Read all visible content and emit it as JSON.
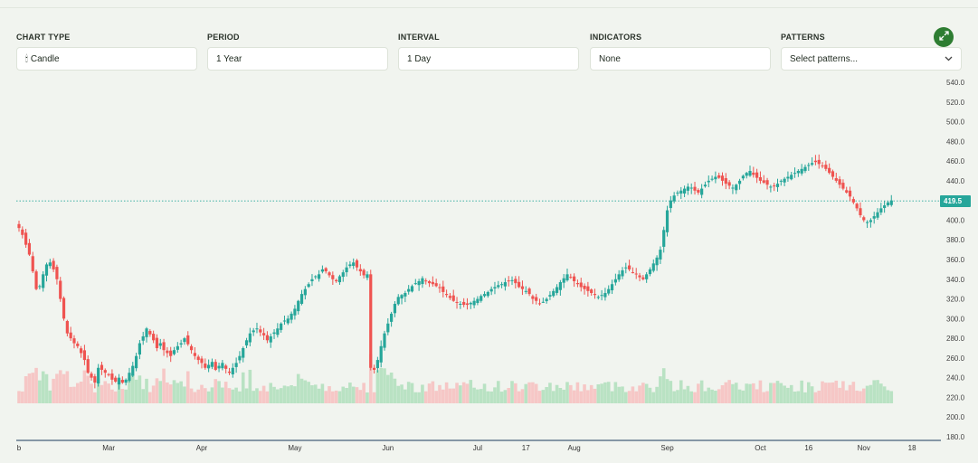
{
  "controls": {
    "chart_type": {
      "label": "CHART TYPE",
      "value": "Candle",
      "icon": "candlestick-icon"
    },
    "period": {
      "label": "PERIOD",
      "value": "1 Year"
    },
    "interval": {
      "label": "INTERVAL",
      "value": "1 Day"
    },
    "indicators": {
      "label": "INDICATORS",
      "value": "None"
    },
    "patterns": {
      "label": "PATTERNS",
      "placeholder": "Select patterns...",
      "icon": "chevron-down-icon"
    }
  },
  "expand_icon": "expand-icon",
  "colors": {
    "up": "#26a69a",
    "down": "#ef5350",
    "up_vol": "#b9e2c3",
    "down_vol": "#f6c7c6",
    "accent": "#2e7d32"
  },
  "chart_data": {
    "type": "candlestick",
    "y_axis": {
      "ticks": [
        540,
        520,
        500,
        480,
        460,
        440,
        420,
        400,
        380,
        360,
        340,
        320,
        300,
        280,
        260,
        240,
        220,
        200,
        180
      ],
      "tick_labels": [
        "540.0",
        "520.0",
        "500.0",
        "480.0",
        "460.0",
        "440.0",
        "420.0",
        "400.0",
        "380.0",
        "360.0",
        "340.0",
        "320.0",
        "300.0",
        "280.0",
        "260.0",
        "240.0",
        "220.0",
        "200.0",
        "180.0"
      ],
      "ylim": [
        180,
        540
      ]
    },
    "x_axis": {
      "labels": [
        {
          "text": "b",
          "day": 0
        },
        {
          "text": "Mar",
          "day": 26
        },
        {
          "text": "Apr",
          "day": 53
        },
        {
          "text": "May",
          "day": 80
        },
        {
          "text": "Jun",
          "day": 107
        },
        {
          "text": "Jul",
          "day": 133
        },
        {
          "text": "17",
          "day": 147
        },
        {
          "text": "Aug",
          "day": 161
        },
        {
          "text": "Sep",
          "day": 188
        },
        {
          "text": "Oct",
          "day": 215
        },
        {
          "text": "16",
          "day": 229
        },
        {
          "text": "Nov",
          "day": 245
        },
        {
          "text": "18",
          "day": 259
        }
      ],
      "days": 266
    },
    "last_price": 419.5,
    "last_price_label": "419.5",
    "closes": [
      392,
      385,
      375,
      365,
      348,
      330,
      333,
      345,
      355,
      357,
      350,
      340,
      320,
      300,
      285,
      280,
      275,
      272,
      265,
      258,
      245,
      240,
      235,
      250,
      248,
      245,
      243,
      238,
      236,
      240,
      235,
      238,
      245,
      252,
      262,
      275,
      282,
      290,
      284,
      278,
      270,
      275,
      268,
      265,
      262,
      268,
      272,
      275,
      280,
      274,
      268,
      262,
      258,
      255,
      250,
      253,
      256,
      248,
      252,
      255,
      249,
      245,
      250,
      255,
      262,
      270,
      278,
      285,
      288,
      290,
      286,
      283,
      278,
      282,
      286,
      290,
      295,
      298,
      300,
      305,
      310,
      318,
      325,
      330,
      335,
      340,
      343,
      345,
      350,
      348,
      344,
      340,
      338,
      343,
      347,
      352,
      355,
      357,
      352,
      348,
      344,
      345,
      250,
      248,
      258,
      272,
      285,
      295,
      305,
      315,
      322,
      324,
      326,
      330,
      333,
      336,
      338,
      341,
      338,
      336,
      335,
      333,
      331,
      327,
      324,
      321,
      318,
      316,
      315,
      314,
      314,
      316,
      318,
      320,
      323,
      325,
      327,
      330,
      332,
      334,
      335,
      337,
      338,
      339,
      336,
      332,
      330,
      328,
      325,
      320,
      318,
      315,
      317,
      320,
      324,
      328,
      332,
      337,
      341,
      345,
      342,
      338,
      335,
      332,
      330,
      328,
      326,
      324,
      322,
      324,
      326,
      330,
      335,
      340,
      345,
      349,
      352,
      350,
      347,
      345,
      342,
      340,
      345,
      350,
      356,
      362,
      370,
      390,
      410,
      420,
      425,
      428,
      430,
      432,
      434,
      433,
      430,
      428,
      432,
      436,
      440,
      442,
      444,
      443,
      440,
      437,
      435,
      433,
      436,
      440,
      445,
      448,
      450,
      446,
      443,
      440,
      438,
      436,
      434,
      435,
      437,
      440,
      442,
      444,
      446,
      448,
      450,
      452,
      454,
      456,
      458,
      459,
      457,
      455,
      452,
      448,
      444,
      440,
      436,
      432,
      428,
      424,
      418,
      412,
      405,
      400,
      398,
      400,
      404,
      408,
      412,
      415,
      418,
      420
    ],
    "volume_pattern": "relative daily volume bars at chart bottom"
  }
}
